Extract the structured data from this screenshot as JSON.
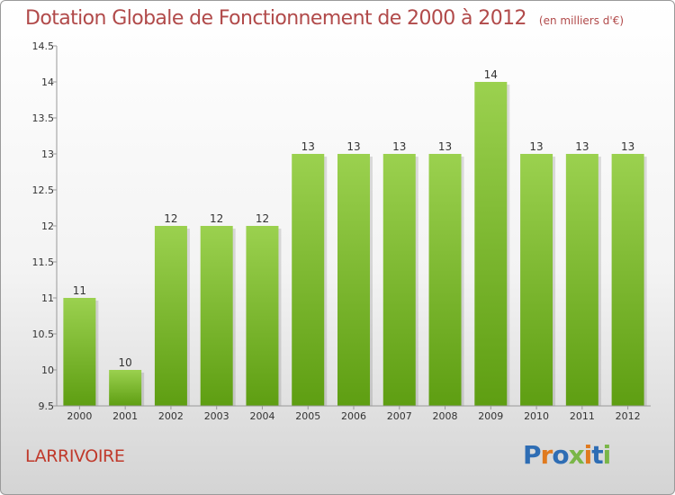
{
  "title": "Dotation Globale de Fonctionnement de 2000 à 2012",
  "subtitle": "(en milliers d'€)",
  "commune": "LARRIVOIRE",
  "logo": {
    "text": "Proxiti",
    "letters": [
      "P",
      "r",
      "o",
      "x",
      "i",
      "t",
      "i"
    ],
    "letter_colors": [
      "#2e6db4",
      "#e07a1f",
      "#2e6db4",
      "#7ab648",
      "#e07a1f",
      "#2e6db4",
      "#7ab648"
    ]
  },
  "colors": {
    "bar_top": "#9bd14f",
    "bar_bottom": "#5e9e12",
    "axis": "#999999",
    "grid": "#dddddd",
    "title": "#b14a4a",
    "commune": "#c0392b"
  },
  "chart_data": {
    "type": "bar",
    "title": "Dotation Globale de Fonctionnement de 2000 à 2012",
    "subtitle": "(en milliers d'€)",
    "categories": [
      "2000",
      "2001",
      "2002",
      "2003",
      "2004",
      "2005",
      "2006",
      "2007",
      "2008",
      "2009",
      "2010",
      "2011",
      "2012"
    ],
    "values": [
      11,
      10,
      12,
      12,
      12,
      13,
      13,
      13,
      13,
      14,
      13,
      13,
      13
    ],
    "labels": [
      "11",
      "10",
      "12",
      "12",
      "12",
      "13",
      "13",
      "13",
      "13",
      "14",
      "13",
      "13",
      "13"
    ],
    "ylim": [
      9.5,
      14.5
    ],
    "yticks": [
      9.5,
      10,
      10.5,
      11,
      11.5,
      12,
      12.5,
      13,
      13.5,
      14,
      14.5
    ],
    "ytick_labels": [
      "9.5",
      "10",
      "10.5",
      "11",
      "11.5",
      "12",
      "12.5",
      "13",
      "13.5",
      "14",
      "14.5"
    ],
    "grid": false
  }
}
